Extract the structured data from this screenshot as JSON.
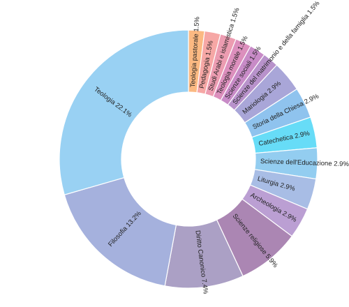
{
  "chart_data": {
    "type": "pie",
    "variant": "donut",
    "title": "",
    "legend": "none",
    "grid": false,
    "slices": [
      {
        "label": "Teologia pastorale",
        "pct_text": "1.5%",
        "value": 1.5,
        "color": "#fbb982"
      },
      {
        "label": "Pedagogia",
        "pct_text": "1.5%",
        "value": 1.5,
        "color": "#f6a7a5"
      },
      {
        "label": "Studi Arabi e islamistica",
        "pct_text": "1.5%",
        "value": 1.5,
        "color": "#ec9cb1"
      },
      {
        "label": "Teologia morale",
        "pct_text": "1.5%",
        "value": 1.5,
        "color": "#dc8fbd"
      },
      {
        "label": "Scienze sociali",
        "pct_text": "1.5%",
        "value": 1.5,
        "color": "#c88bc7"
      },
      {
        "label": "Scienze del matrimonio e della famiglia",
        "pct_text": "1.5%",
        "value": 1.5,
        "color": "#b892cb"
      },
      {
        "label": "Mariologia",
        "pct_text": "2.9%",
        "value": 2.9,
        "color": "#a9a6d8"
      },
      {
        "label": "Storia della Chiesa",
        "pct_text": "2.9%",
        "value": 2.9,
        "color": "#8fc3ee"
      },
      {
        "label": "Catechetica",
        "pct_text": "2.9%",
        "value": 2.9,
        "color": "#67dcf7"
      },
      {
        "label": "Scienze dell'Educazione",
        "pct_text": "2.9%",
        "value": 2.9,
        "color": "#93cdf0"
      },
      {
        "label": "Liturgia",
        "pct_text": "2.9%",
        "value": 2.9,
        "color": "#a8bde5"
      },
      {
        "label": "Archeologia",
        "pct_text": "2.9%",
        "value": 2.9,
        "color": "#bb9fd3"
      },
      {
        "label": "Scienze religiose",
        "pct_text": "5.9%",
        "value": 5.9,
        "color": "#ab86b3"
      },
      {
        "label": "Diritto Canonico",
        "pct_text": "7.4%",
        "value": 7.4,
        "color": "#aba0c5"
      },
      {
        "label": "Filosofia",
        "pct_text": "13.2%",
        "value": 13.2,
        "color": "#a5b1dd"
      },
      {
        "label": "Teologia",
        "pct_text": "22.1%",
        "value": 22.1,
        "color": "#99d1f3"
      }
    ]
  }
}
